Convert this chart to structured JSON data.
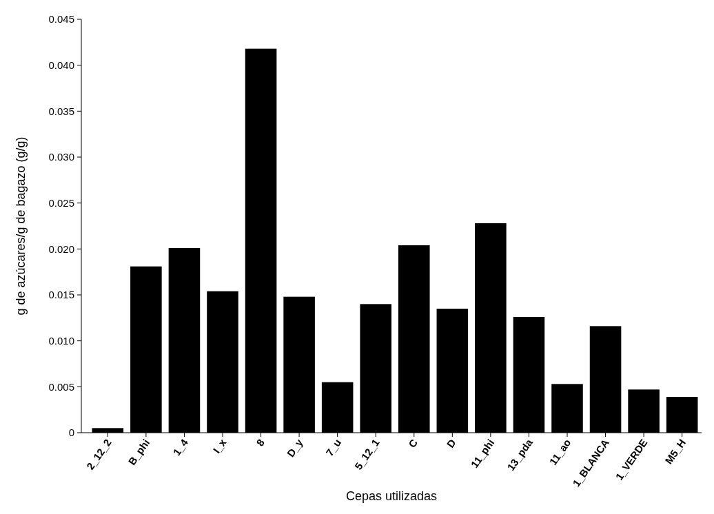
{
  "chart_data": {
    "type": "bar",
    "xlabel": "Cepas utilizadas",
    "ylabel": "g de azúcares/g de bagazo (g/g)",
    "categories": [
      "2_12_2",
      "B_phi",
      "1_4",
      "I_x",
      "8",
      "D_y",
      "7_u",
      "5_12_1",
      "C",
      "D",
      "11_phi",
      "13_pda",
      "11_ao",
      "1_BLANCA",
      "1_VERDE",
      "M5_H"
    ],
    "values": [
      0.0005,
      0.0181,
      0.0201,
      0.0154,
      0.0418,
      0.0148,
      0.0055,
      0.014,
      0.0204,
      0.0135,
      0.0228,
      0.0126,
      0.0053,
      0.0116,
      0.0047,
      0.0039
    ],
    "color": "#000000",
    "ylim": [
      0,
      0.045
    ],
    "yticks": [
      {
        "value": 0,
        "label": "0"
      },
      {
        "value": 0.005,
        "label": "0.005"
      },
      {
        "value": 0.01,
        "label": "0.010"
      },
      {
        "value": 0.015,
        "label": "0.015"
      },
      {
        "value": 0.02,
        "label": "0.020"
      },
      {
        "value": 0.025,
        "label": "0.025"
      },
      {
        "value": 0.03,
        "label": "0.030"
      },
      {
        "value": 0.035,
        "label": "0.035"
      },
      {
        "value": 0.04,
        "label": "0.040"
      },
      {
        "value": 0.045,
        "label": "0.045"
      }
    ],
    "grid": false
  }
}
